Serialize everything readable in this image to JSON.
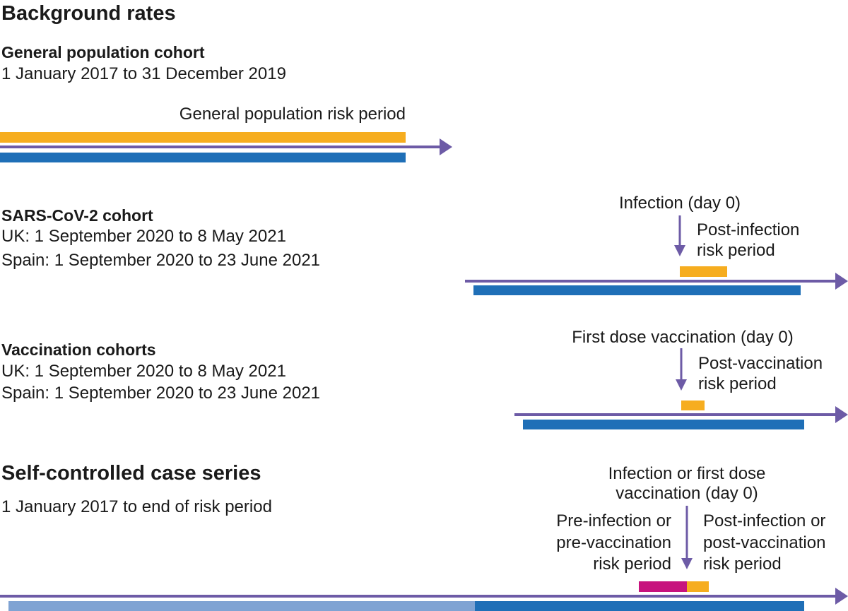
{
  "colors": {
    "arrow": "#6d5ba6",
    "orange": "#f6ad1f",
    "blue": "#1f6fb7",
    "light_blue": "#7fa3d3",
    "magenta": "#c7137e"
  },
  "background": {
    "title": "Background rates",
    "general": {
      "heading": "General population cohort",
      "dates": "1 January 2017 to 31 December 2019",
      "risk_label": "General population risk period"
    },
    "sars": {
      "heading": "SARS-CoV-2 cohort",
      "uk_dates": "UK: 1 September 2020 to 8 May 2021",
      "spain_dates": "Spain: 1 September 2020 to 23 June 2021",
      "event_label": "Infection (day 0)",
      "risk_label_line1": "Post-infection",
      "risk_label_line2": "risk period"
    },
    "vaccination": {
      "heading": "Vaccination cohorts",
      "uk_dates": "UK: 1 September 2020 to 8 May 2021",
      "spain_dates": "Spain: 1 September 2020 to 23 June 2021",
      "event_label": "First dose vaccination (day 0)",
      "risk_label_line1": "Post-vaccination",
      "risk_label_line2": "risk period"
    }
  },
  "sccs": {
    "title": "Self-controlled case series",
    "dates": "1 January 2017 to end of risk period",
    "event_label_line1": "Infection or first dose",
    "event_label_line2": "vaccination (day 0)",
    "pre_label_line1": "Pre-infection or",
    "pre_label_line2": "pre-vaccination",
    "pre_label_line3": "risk period",
    "post_label_line1": "Post-infection or",
    "post_label_line2": "post-vaccination",
    "post_label_line3": "risk period"
  }
}
